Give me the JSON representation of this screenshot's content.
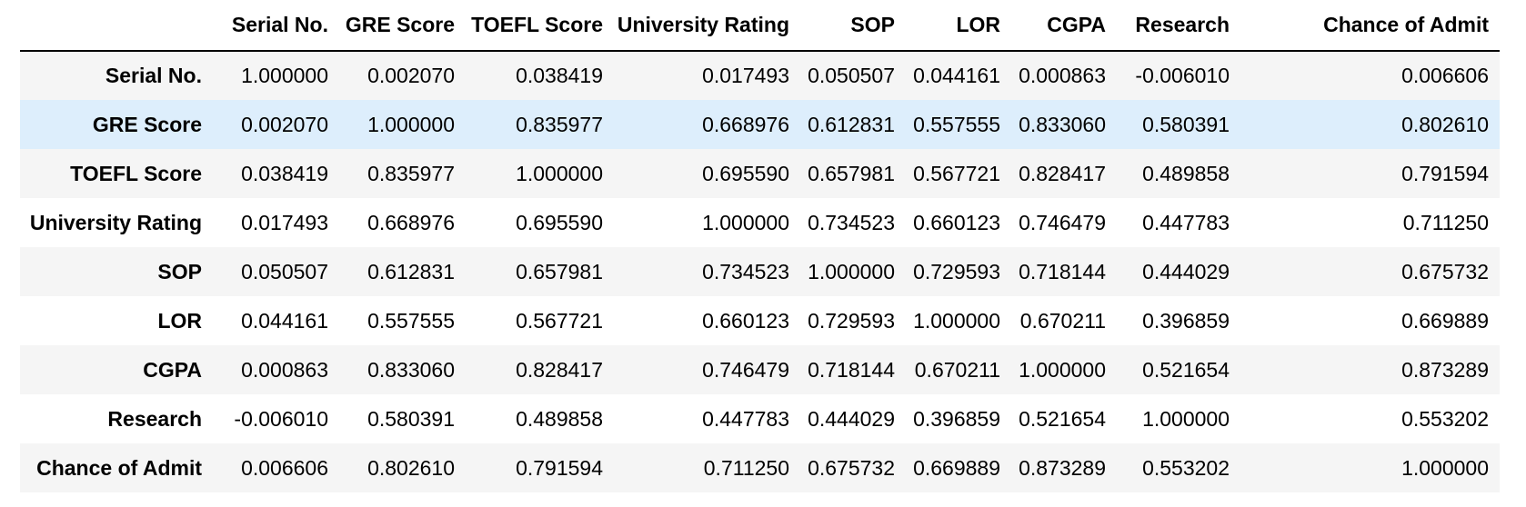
{
  "table": {
    "corner": "",
    "columns": [
      "Serial No.",
      "GRE Score",
      "TOEFL Score",
      "University Rating",
      "SOP",
      "LOR",
      "CGPA",
      "Research",
      "Chance of Admit"
    ],
    "hover_color": "#ddeefc",
    "stripe_color": "#f5f5f5",
    "rows": [
      {
        "label": "Serial No.",
        "values": [
          "1.000000",
          "0.002070",
          "0.038419",
          "0.017493",
          "0.050507",
          "0.044161",
          "0.000863",
          "-0.006010",
          "0.006606"
        ]
      },
      {
        "label": "GRE Score",
        "values": [
          "0.002070",
          "1.000000",
          "0.835977",
          "0.668976",
          "0.612831",
          "0.557555",
          "0.833060",
          "0.580391",
          "0.802610"
        ]
      },
      {
        "label": "TOEFL Score",
        "values": [
          "0.038419",
          "0.835977",
          "1.000000",
          "0.695590",
          "0.657981",
          "0.567721",
          "0.828417",
          "0.489858",
          "0.791594"
        ]
      },
      {
        "label": "University Rating",
        "values": [
          "0.017493",
          "0.668976",
          "0.695590",
          "1.000000",
          "0.734523",
          "0.660123",
          "0.746479",
          "0.447783",
          "0.711250"
        ]
      },
      {
        "label": "SOP",
        "values": [
          "0.050507",
          "0.612831",
          "0.657981",
          "0.734523",
          "1.000000",
          "0.729593",
          "0.718144",
          "0.444029",
          "0.675732"
        ]
      },
      {
        "label": "LOR",
        "values": [
          "0.044161",
          "0.557555",
          "0.567721",
          "0.660123",
          "0.729593",
          "1.000000",
          "0.670211",
          "0.396859",
          "0.669889"
        ]
      },
      {
        "label": "CGPA",
        "values": [
          "0.000863",
          "0.833060",
          "0.828417",
          "0.746479",
          "0.718144",
          "0.670211",
          "1.000000",
          "0.521654",
          "0.873289"
        ]
      },
      {
        "label": "Research",
        "values": [
          "-0.006010",
          "0.580391",
          "0.489858",
          "0.447783",
          "0.444029",
          "0.396859",
          "0.521654",
          "1.000000",
          "0.553202"
        ]
      },
      {
        "label": "Chance of Admit",
        "values": [
          "0.006606",
          "0.802610",
          "0.791594",
          "0.711250",
          "0.675732",
          "0.669889",
          "0.873289",
          "0.553202",
          "1.000000"
        ]
      }
    ]
  }
}
